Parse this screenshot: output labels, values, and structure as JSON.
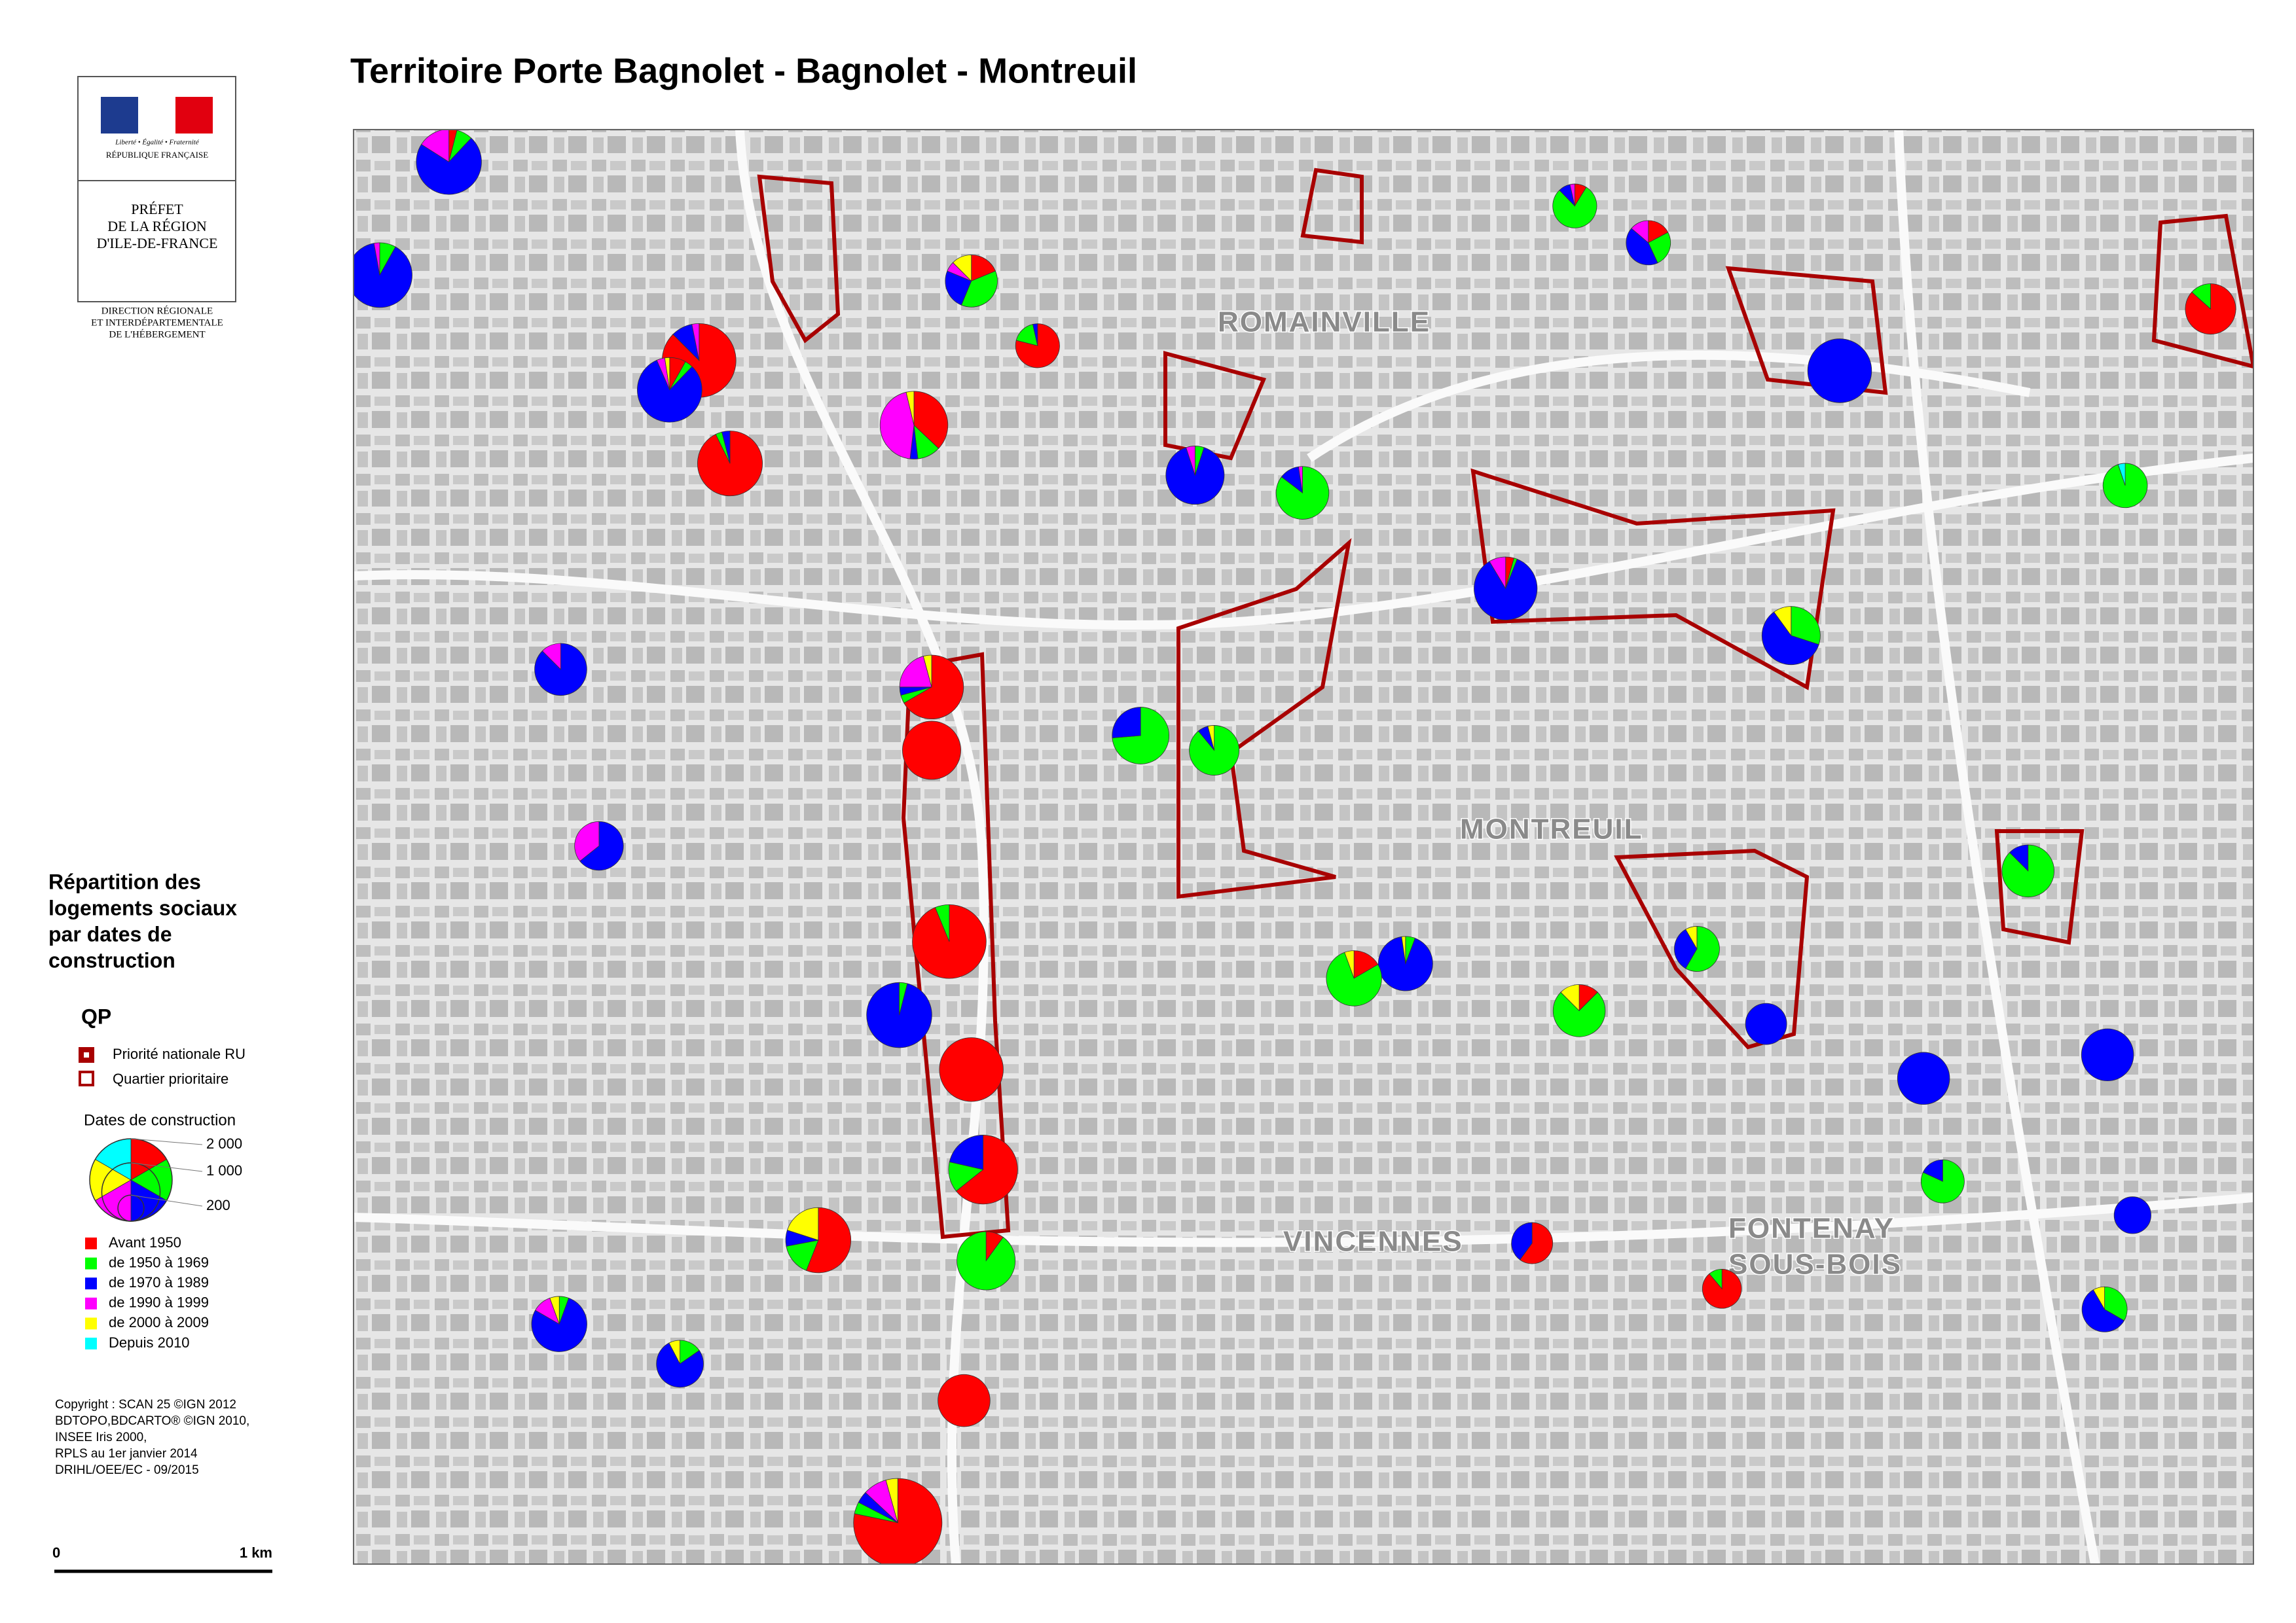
{
  "header": {
    "title": "Territoire Porte Bagnolet - Bagnolet - Montreuil"
  },
  "logo": {
    "motto": "Liberté • Égalité • Fraternité",
    "republic": "RÉPUBLIQUE FRANÇAISE",
    "prefect": [
      "PRÉFET",
      "DE LA RÉGION",
      "D'ILE-DE-FRANCE"
    ],
    "direction": [
      "DIRECTION RÉGIONALE",
      "ET INTERDÉPARTEMENTALE",
      "DE L'HÉBERGEMENT"
    ]
  },
  "legend": {
    "title": [
      "Répartition des",
      "logements sociaux",
      "par dates de",
      "construction"
    ],
    "qp_title": "QP",
    "qp": [
      "Priorité nationale RU",
      "Quartier prioritaire"
    ],
    "dates_title": "Dates de construction",
    "sizes": [
      {
        "value": 2000,
        "label": "2 000"
      },
      {
        "value": 1000,
        "label": "1 000"
      },
      200
    ],
    "items": [
      {
        "label": "Avant 1950",
        "color": "#ff0000"
      },
      {
        "label": "de 1950 à 1969",
        "color": "#00ff00"
      },
      {
        "label": "de 1970 à 1989",
        "color": "#0000ff"
      },
      {
        "label": "de 1990 à 1999",
        "color": "#ff00ff"
      },
      {
        "label": "de 2000 à 2009",
        "color": "#ffff00"
      },
      {
        "label": "Depuis 2010",
        "color": "#00ffff"
      }
    ]
  },
  "copyright": [
    "Copyright : SCAN 25 ©IGN 2012",
    "BDTOPO,BDCARTO® ©IGN 2010,",
    "INSEE Iris 2000,",
    "RPLS au 1er janvier 2014",
    "DRIHL/OEE/EC - 09/2015"
  ],
  "scale": {
    "start": "0",
    "end": "1 km"
  },
  "map": {
    "places": [
      "ROMAINVILLE",
      "MONTREUIL",
      "VINCENNES",
      "FONTENAY",
      "SOUS-BOIS"
    ],
    "pies": [
      {
        "values": [
          0,
          100,
          1100,
          35,
          0,
          0
        ]
      },
      {
        "values": [
          1400,
          0,
          150,
          50,
          0,
          0
        ]
      },
      {
        "values": [
          100,
          50,
          1000,
          50,
          30,
          0
        ]
      },
      {
        "values": [
          1150,
          40,
          50,
          0,
          0,
          0
        ]
      },
      {
        "values": [
          500,
          150,
          50,
          600,
          50,
          0
        ]
      },
      {
        "values": [
          150,
          300,
          200,
          50,
          100,
          0
        ]
      },
      {
        "values": [
          450,
          100,
          20,
          0,
          0,
          0
        ]
      },
      {
        "values": [
          0,
          50,
          900,
          50,
          0,
          0
        ]
      },
      {
        "values": [
          0,
          700,
          100,
          20,
          0,
          0
        ]
      },
      {
        "values": [
          0,
          0,
          1200,
          0,
          0,
          0
        ]
      },
      {
        "values": [
          50,
          450,
          50,
          20,
          0,
          0
        ]
      },
      {
        "values": [
          100,
          150,
          250,
          80,
          0,
          0
        ]
      },
      {
        "values": [
          50,
          20,
          1000,
          100,
          0,
          0
        ]
      },
      {
        "values": [
          0,
          300,
          600,
          0,
          100,
          0
        ]
      },
      {
        "values": [
          0,
          700,
          250,
          0,
          0,
          0
        ]
      },
      {
        "values": [
          0,
          650,
          50,
          0,
          30,
          0
        ]
      },
      {
        "values": [
          800,
          50,
          50,
          250,
          50,
          0
        ]
      },
      {
        "values": [
          1000,
          0,
          0,
          0,
          0,
          0
        ]
      },
      {
        "values": [
          1500,
          100,
          0,
          0,
          0,
          0
        ]
      },
      {
        "values": [
          0,
          50,
          1200,
          0,
          0,
          0
        ]
      },
      {
        "values": [
          1200,
          0,
          0,
          0,
          0,
          0
        ]
      },
      {
        "values": [
          900,
          200,
          300,
          0,
          0,
          0
        ]
      },
      {
        "values": [
          100,
          900,
          0,
          0,
          0,
          0
        ]
      },
      {
        "values": [
          800,
          0,
          0,
          0,
          0,
          0
        ]
      },
      {
        "values": [
          1800,
          100,
          100,
          200,
          100,
          0
        ]
      },
      {
        "values": [
          700,
          200,
          100,
          0,
          250,
          0
        ]
      },
      {
        "values": [
          0,
          50,
          800,
          0,
          20,
          0
        ]
      },
      {
        "values": [
          150,
          700,
          0,
          0,
          50,
          0
        ]
      },
      {
        "values": [
          0,
          0,
          800,
          0,
          0,
          0
        ]
      },
      {
        "values": [
          0,
          0,
          800,
          0,
          0,
          0
        ]
      },
      {
        "values": [
          0,
          700,
          100,
          0,
          0,
          0
        ]
      },
      {
        "values": [
          0,
          200,
          350,
          0,
          50,
          0
        ]
      },
      {
        "values": [
          100,
          600,
          0,
          0,
          100,
          0
        ]
      },
      {
        "values": [
          0,
          350,
          200,
          0,
          50,
          0
        ]
      },
      {
        "values": [
          0,
          0,
          500,
          0,
          0,
          0
        ]
      },
      {
        "values": [
          0,
          550,
          0,
          0,
          0,
          30
        ]
      },
      {
        "values": [
          650,
          100,
          0,
          0,
          0,
          0
        ]
      },
      {
        "values": [
          0,
          0,
          700,
          100,
          0,
          0
        ]
      },
      {
        "values": [
          0,
          0,
          450,
          250,
          0,
          0
        ]
      },
      {
        "values": [
          0,
          50,
          700,
          100,
          50,
          0
        ]
      },
      {
        "values": [
          0,
          100,
          500,
          0,
          50,
          0
        ]
      },
      {
        "values": [
          300,
          0,
          200,
          0,
          0,
          0
        ]
      },
      {
        "values": [
          400,
          50,
          0,
          0,
          0,
          0
        ]
      },
      {
        "values": [
          50,
          100,
          900,
          200,
          0,
          0
        ]
      },
      {
        "values": [
          0,
          450,
          100,
          0,
          0,
          0
        ]
      },
      {
        "values": [
          0,
          0,
          400,
          0,
          0,
          0
        ]
      }
    ]
  }
}
